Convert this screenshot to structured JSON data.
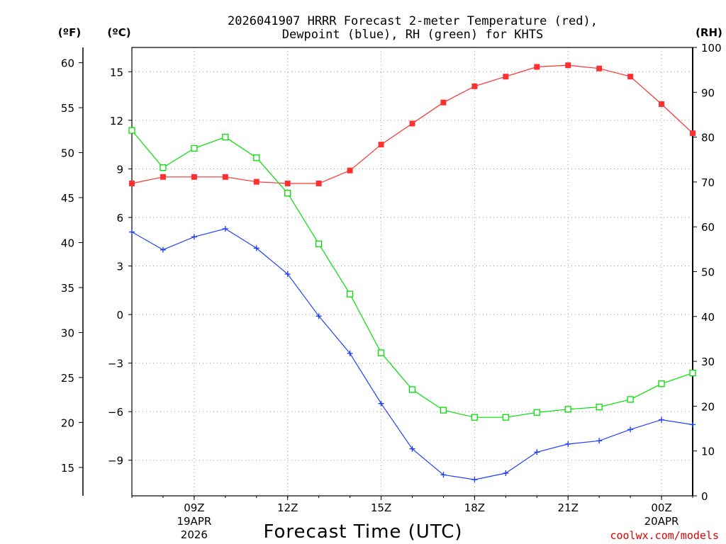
{
  "chart_data": {
    "type": "line",
    "title_line1": "2026041907 HRRR Forecast 2-meter Temperature (red),",
    "title_line2": "Dewpoint (blue), RH (green) for KHTS",
    "xlabel": "Forecast Time (UTC)",
    "credit": "coolwx.com/models",
    "units": {
      "fahrenheit": "(ºF)",
      "celsius": "(ºC)",
      "rh": "(RH)"
    },
    "x_hours": [
      7,
      8,
      9,
      10,
      11,
      12,
      13,
      14,
      15,
      16,
      17,
      18,
      19,
      20,
      21,
      22,
      23,
      24,
      25
    ],
    "xlim": [
      7,
      25
    ],
    "x_ticks": [
      {
        "hour": 9,
        "label": "09Z",
        "line2": "19APR",
        "line3": "2026"
      },
      {
        "hour": 12,
        "label": "12Z",
        "line2": "",
        "line3": ""
      },
      {
        "hour": 15,
        "label": "15Z",
        "line2": "",
        "line3": ""
      },
      {
        "hour": 18,
        "label": "18Z",
        "line2": "",
        "line3": ""
      },
      {
        "hour": 21,
        "label": "21Z",
        "line2": "",
        "line3": ""
      },
      {
        "hour": 24,
        "label": "00Z",
        "line2": "20APR",
        "line3": ""
      }
    ],
    "celsius_ticks": [
      "15",
      "12",
      "9",
      "6",
      "3",
      "0",
      "−3",
      "−6",
      "−9"
    ],
    "celsius_tick_values": [
      15,
      12,
      9,
      6,
      3,
      0,
      -3,
      -6,
      -9
    ],
    "ylim_celsius": [
      -11.2,
      16.5
    ],
    "fahrenheit_ticks": [
      "60",
      "55",
      "50",
      "45",
      "40",
      "35",
      "30",
      "25",
      "20",
      "15"
    ],
    "fahrenheit_tick_values": [
      60,
      55,
      50,
      45,
      40,
      35,
      30,
      25,
      20,
      15
    ],
    "rh_ticks": [
      "100",
      "90",
      "80",
      "70",
      "60",
      "50",
      "40",
      "30",
      "20",
      "10",
      "0"
    ],
    "rh_tick_values": [
      100,
      90,
      80,
      70,
      60,
      50,
      40,
      30,
      20,
      10,
      0
    ],
    "ylim_rh": [
      0,
      100
    ],
    "series": [
      {
        "name": "Temperature",
        "axis": "celsius",
        "color": "#ff3030",
        "marker": "filled-square",
        "values": [
          8.1,
          8.5,
          8.5,
          8.5,
          8.2,
          8.1,
          8.1,
          8.9,
          10.5,
          11.8,
          13.1,
          14.1,
          14.7,
          15.3,
          15.4,
          15.2,
          14.7,
          13.0,
          11.2
        ]
      },
      {
        "name": "Dewpoint",
        "axis": "celsius",
        "color": "#2040ff",
        "marker": "plus",
        "values": [
          5.1,
          4.0,
          4.8,
          5.3,
          4.1,
          2.5,
          -0.1,
          -2.4,
          -5.5,
          -8.3,
          -9.9,
          -10.2,
          -9.8,
          -8.5,
          -8.0,
          -7.8,
          -7.1,
          -6.5,
          -6.8
        ]
      },
      {
        "name": "RH",
        "axis": "rh",
        "color": "#00e000",
        "marker": "open-square",
        "values": [
          81.5,
          73.2,
          77.5,
          80.0,
          75.4,
          67.5,
          56.2,
          45.0,
          31.9,
          23.7,
          19.1,
          17.5,
          17.5,
          18.6,
          19.3,
          19.8,
          21.5,
          25.0,
          27.4
        ]
      }
    ]
  }
}
